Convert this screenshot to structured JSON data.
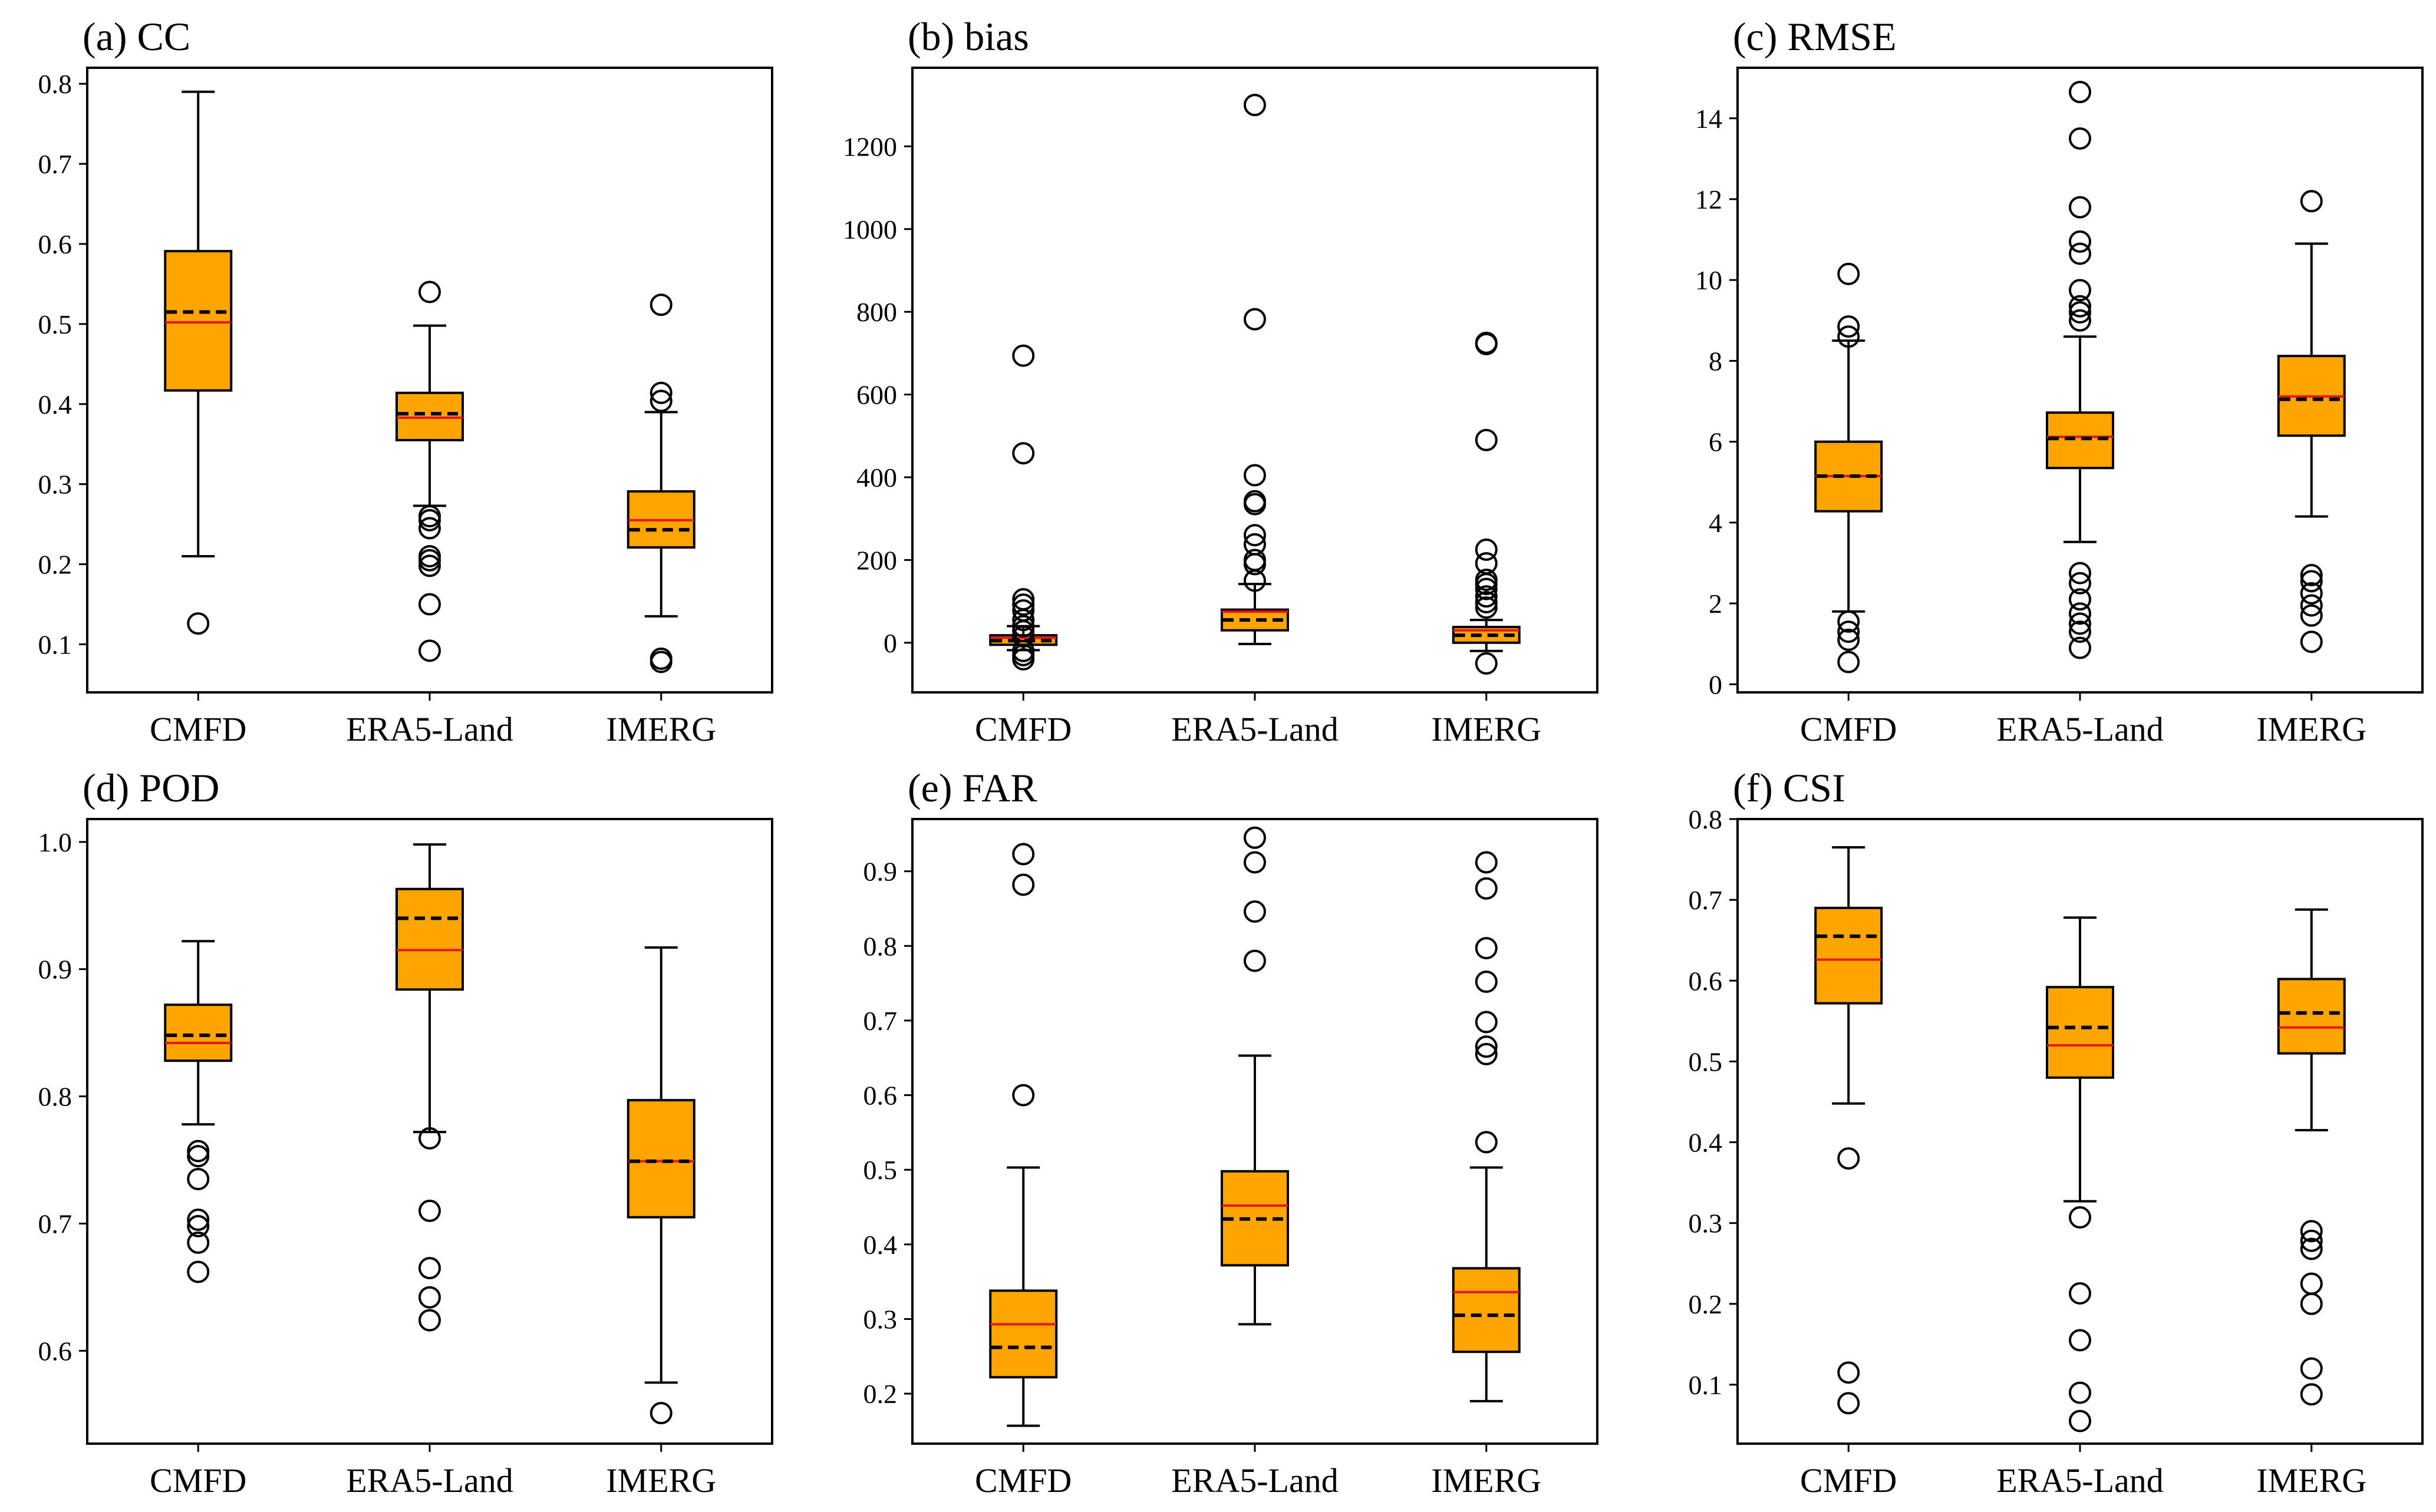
{
  "colors": {
    "box_fill": "#FFA500",
    "median": "#E8141E",
    "mean": "#000000",
    "axes": "#000000",
    "outlier": "#000000"
  },
  "chart_data": [
    {
      "type": "box",
      "title": "(a) CC",
      "categories": [
        "CMFD",
        "ERA5-Land",
        "IMERG"
      ],
      "ylim": [
        0.04,
        0.82
      ],
      "yticks": [
        0.1,
        0.2,
        0.3,
        0.4,
        0.5,
        0.6,
        0.7,
        0.8
      ],
      "ytick_labels": [
        "0.1",
        "0.2",
        "0.3",
        "0.4",
        "0.5",
        "0.6",
        "0.7",
        "0.8"
      ],
      "boxes": [
        {
          "whislo": 0.21,
          "q1": 0.417,
          "med": 0.502,
          "mean": 0.515,
          "q3": 0.591,
          "whishi": 0.79,
          "fliers": [
            0.126
          ]
        },
        {
          "whislo": 0.273,
          "q1": 0.355,
          "med": 0.383,
          "mean": 0.388,
          "q3": 0.414,
          "whishi": 0.498,
          "fliers": [
            0.54,
            0.26,
            0.255,
            0.245,
            0.21,
            0.205,
            0.198,
            0.15,
            0.092
          ]
        },
        {
          "whislo": 0.135,
          "q1": 0.221,
          "med": 0.255,
          "mean": 0.243,
          "q3": 0.291,
          "whishi": 0.39,
          "fliers": [
            0.524,
            0.414,
            0.404,
            0.082,
            0.078
          ]
        }
      ]
    },
    {
      "type": "box",
      "title": "(b) bias",
      "categories": [
        "CMFD",
        "ERA5-Land",
        "IMERG"
      ],
      "ylim": [
        -120,
        1390
      ],
      "yticks": [
        0,
        200,
        400,
        600,
        800,
        1000,
        1200
      ],
      "ytick_labels": [
        "0",
        "200",
        "400",
        "600",
        "800",
        "1000",
        "1200"
      ],
      "boxes": [
        {
          "whislo": -18,
          "q1": -5,
          "med": 12,
          "mean": 5,
          "q3": 18,
          "whishi": 40,
          "fliers": [
            694,
            458,
            105,
            92,
            78,
            55,
            40,
            28,
            15,
            -20,
            -30,
            -40
          ]
        },
        {
          "whislo": -3,
          "q1": 30,
          "med": 75,
          "mean": 55,
          "q3": 80,
          "whishi": 142,
          "fliers": [
            1300,
            782,
            405,
            342,
            335,
            260,
            238,
            200,
            190,
            150
          ]
        },
        {
          "whislo": -20,
          "q1": 0,
          "med": 30,
          "mean": 18,
          "q3": 38,
          "whishi": 55,
          "fliers": [
            725,
            722,
            490,
            225,
            192,
            152,
            142,
            130,
            112,
            98,
            85,
            -50
          ]
        }
      ]
    },
    {
      "type": "box",
      "title": "(c) RMSE",
      "categories": [
        "CMFD",
        "ERA5-Land",
        "IMERG"
      ],
      "ylim": [
        -0.2,
        15.25
      ],
      "yticks": [
        0,
        2,
        4,
        6,
        8,
        10,
        12,
        14
      ],
      "ytick_labels": [
        "0",
        "2",
        "4",
        "6",
        "8",
        "10",
        "12",
        "14"
      ],
      "boxes": [
        {
          "whislo": 1.8,
          "q1": 4.28,
          "med": 5.15,
          "mean": 5.15,
          "q3": 6.0,
          "whishi": 8.5,
          "fliers": [
            10.15,
            8.85,
            8.6,
            1.55,
            1.3,
            1.1,
            0.55
          ]
        },
        {
          "whislo": 3.52,
          "q1": 5.35,
          "med": 6.12,
          "mean": 6.08,
          "q3": 6.72,
          "whishi": 8.6,
          "fliers": [
            14.65,
            13.5,
            11.8,
            10.95,
            10.65,
            9.75,
            9.35,
            9.2,
            9.0,
            2.75,
            2.5,
            2.1,
            1.75,
            1.5,
            1.3,
            0.9
          ]
        },
        {
          "whislo": 4.15,
          "q1": 6.15,
          "med": 7.12,
          "mean": 7.05,
          "q3": 8.12,
          "whishi": 10.9,
          "fliers": [
            11.95,
            2.7,
            2.55,
            2.25,
            1.95,
            1.7,
            1.05
          ]
        }
      ]
    },
    {
      "type": "box",
      "title": "(d) POD",
      "categories": [
        "CMFD",
        "ERA5-Land",
        "IMERG"
      ],
      "ylim": [
        0.527,
        1.018
      ],
      "yticks": [
        0.6,
        0.7,
        0.8,
        0.9,
        1.0
      ],
      "ytick_labels": [
        "0.6",
        "0.7",
        "0.8",
        "0.9",
        "1.0"
      ],
      "boxes": [
        {
          "whislo": 0.778,
          "q1": 0.828,
          "med": 0.842,
          "mean": 0.848,
          "q3": 0.872,
          "whishi": 0.922,
          "fliers": [
            0.757,
            0.753,
            0.735,
            0.703,
            0.698,
            0.685,
            0.662
          ]
        },
        {
          "whislo": 0.772,
          "q1": 0.884,
          "med": 0.915,
          "mean": 0.94,
          "q3": 0.963,
          "whishi": 0.998,
          "fliers": [
            0.767,
            0.71,
            0.665,
            0.642,
            0.624
          ]
        },
        {
          "whislo": 0.575,
          "q1": 0.705,
          "med": 0.749,
          "mean": 0.749,
          "q3": 0.797,
          "whishi": 0.917,
          "fliers": [
            0.551
          ]
        }
      ]
    },
    {
      "type": "box",
      "title": "(e) FAR",
      "categories": [
        "CMFD",
        "ERA5-Land",
        "IMERG"
      ],
      "ylim": [
        0.133,
        0.97
      ],
      "yticks": [
        0.2,
        0.3,
        0.4,
        0.5,
        0.6,
        0.7,
        0.8,
        0.9
      ],
      "ytick_labels": [
        "0.2",
        "0.3",
        "0.4",
        "0.5",
        "0.6",
        "0.7",
        "0.8",
        "0.9"
      ],
      "boxes": [
        {
          "whislo": 0.157,
          "q1": 0.222,
          "med": 0.293,
          "mean": 0.262,
          "q3": 0.338,
          "whishi": 0.503,
          "fliers": [
            0.923,
            0.882,
            0.6
          ]
        },
        {
          "whislo": 0.293,
          "q1": 0.372,
          "med": 0.452,
          "mean": 0.434,
          "q3": 0.498,
          "whishi": 0.653,
          "fliers": [
            0.945,
            0.912,
            0.846,
            0.78
          ]
        },
        {
          "whislo": 0.19,
          "q1": 0.256,
          "med": 0.336,
          "mean": 0.305,
          "q3": 0.368,
          "whishi": 0.503,
          "fliers": [
            0.912,
            0.877,
            0.797,
            0.752,
            0.698,
            0.665,
            0.655,
            0.537
          ]
        }
      ]
    },
    {
      "type": "box",
      "title": "(f) CSI",
      "categories": [
        "CMFD",
        "ERA5-Land",
        "IMERG"
      ],
      "ylim": [
        0.027,
        0.8
      ],
      "yticks": [
        0.1,
        0.2,
        0.3,
        0.4,
        0.5,
        0.6,
        0.7,
        0.8
      ],
      "ytick_labels": [
        "0.1",
        "0.2",
        "0.3",
        "0.4",
        "0.5",
        "0.6",
        "0.7",
        "0.8"
      ],
      "boxes": [
        {
          "whislo": 0.448,
          "q1": 0.572,
          "med": 0.626,
          "mean": 0.655,
          "q3": 0.69,
          "whishi": 0.765,
          "fliers": [
            0.38,
            0.115,
            0.077
          ]
        },
        {
          "whislo": 0.327,
          "q1": 0.48,
          "med": 0.52,
          "mean": 0.542,
          "q3": 0.592,
          "whishi": 0.678,
          "fliers": [
            0.307,
            0.213,
            0.155,
            0.09,
            0.055
          ]
        },
        {
          "whislo": 0.415,
          "q1": 0.51,
          "med": 0.542,
          "mean": 0.56,
          "q3": 0.602,
          "whishi": 0.688,
          "fliers": [
            0.29,
            0.278,
            0.268,
            0.225,
            0.2,
            0.12,
            0.088
          ]
        }
      ]
    }
  ]
}
